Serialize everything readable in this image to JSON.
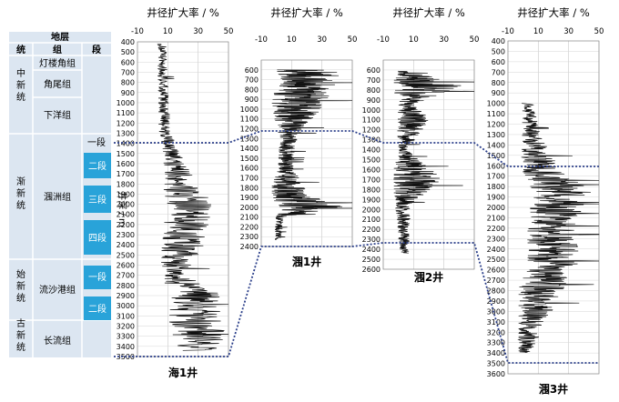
{
  "stratigraphy": {
    "header": "地层",
    "col_series": "统",
    "col_formation": "组",
    "col_member": "段",
    "series": [
      "中新统",
      "渐新统",
      "始新统",
      "古新统"
    ],
    "formations": [
      "灯楼角组",
      "角尾组",
      "下洋组",
      "涠洲组",
      "流沙港组",
      "长流组"
    ],
    "members": [
      "一段",
      "二段",
      "三段",
      "四段",
      "一段",
      "二段"
    ],
    "highlight_color": "#29a3d9",
    "panel_color": "#dce6f1"
  },
  "depth_axis_label": "井深 / m",
  "chart_data": [
    {
      "type": "line",
      "well": "海1井",
      "title": "井径扩大率 / %",
      "ylabel": "井深 / m",
      "xlim": [
        -10,
        50
      ],
      "x_ticks": [
        -10,
        10,
        30,
        50
      ],
      "ylim": [
        400,
        3500
      ],
      "y_ticks": [
        400,
        500,
        600,
        700,
        800,
        900,
        1000,
        1100,
        1200,
        1300,
        1400,
        1500,
        1600,
        1700,
        1800,
        1900,
        2000,
        2100,
        2200,
        2300,
        2400,
        2500,
        2600,
        2700,
        2800,
        2900,
        3000,
        3100,
        3200,
        3300,
        3400,
        3500
      ],
      "depth_top": 420,
      "depth_bottom": 3440,
      "profile": [
        {
          "d": 420,
          "base": 6,
          "amp": 3
        },
        {
          "d": 1300,
          "base": 8,
          "amp": 4
        },
        {
          "d": 1600,
          "base": 14,
          "amp": 8
        },
        {
          "d": 2000,
          "base": 24,
          "amp": 16
        },
        {
          "d": 2400,
          "base": 20,
          "amp": 14
        },
        {
          "d": 2700,
          "base": 14,
          "amp": 9
        },
        {
          "d": 2900,
          "base": 28,
          "amp": 18
        },
        {
          "d": 3440,
          "base": 30,
          "amp": 18
        }
      ]
    },
    {
      "type": "line",
      "well": "涠1井",
      "title": "井径扩大率 / %",
      "xlim": [
        -10,
        50
      ],
      "x_ticks": [
        -10,
        10,
        30,
        50
      ],
      "ylim": [
        500,
        2400
      ],
      "y_ticks": [
        600,
        700,
        800,
        900,
        1000,
        1100,
        1200,
        1300,
        1400,
        1500,
        1600,
        1700,
        1800,
        1900,
        2000,
        2100,
        2200,
        2300,
        2400
      ],
      "depth_top": 600,
      "depth_bottom": 2330,
      "profile": [
        {
          "d": 600,
          "base": 22,
          "amp": 22
        },
        {
          "d": 950,
          "base": 14,
          "amp": 18
        },
        {
          "d": 1300,
          "base": 8,
          "amp": 6
        },
        {
          "d": 1600,
          "base": 6,
          "amp": 5
        },
        {
          "d": 1880,
          "base": 8,
          "amp": 14
        },
        {
          "d": 2000,
          "base": 24,
          "amp": 22
        },
        {
          "d": 2100,
          "base": 2,
          "amp": 3
        },
        {
          "d": 2330,
          "base": 1,
          "amp": 2
        }
      ]
    },
    {
      "type": "line",
      "well": "涠2井",
      "title": "井径扩大率 / %",
      "xlim": [
        -10,
        50
      ],
      "x_ticks": [
        -10,
        10,
        30,
        50
      ],
      "ylim": [
        500,
        2600
      ],
      "y_ticks": [
        600,
        700,
        800,
        900,
        1000,
        1100,
        1200,
        1300,
        1400,
        1500,
        1600,
        1700,
        1800,
        1900,
        2000,
        2100,
        2200,
        2300,
        2400,
        2500,
        2600
      ],
      "depth_top": 610,
      "depth_bottom": 2440,
      "profile": [
        {
          "d": 610,
          "base": 3,
          "amp": 3
        },
        {
          "d": 750,
          "base": 20,
          "amp": 25
        },
        {
          "d": 950,
          "base": 5,
          "amp": 5
        },
        {
          "d": 1100,
          "base": 10,
          "amp": 12
        },
        {
          "d": 1400,
          "base": 3,
          "amp": 3
        },
        {
          "d": 1700,
          "base": 12,
          "amp": 18
        },
        {
          "d": 1950,
          "base": 3,
          "amp": 5
        },
        {
          "d": 2440,
          "base": 4,
          "amp": 3
        }
      ]
    },
    {
      "type": "line",
      "well": "涠3井",
      "title": "井径扩大率 / %",
      "xlim": [
        -10,
        50
      ],
      "x_ticks": [
        -10,
        10,
        30,
        50
      ],
      "ylim": [
        400,
        3600
      ],
      "y_ticks": [
        400,
        500,
        600,
        700,
        800,
        900,
        1000,
        1100,
        1200,
        1300,
        1400,
        1500,
        1600,
        1700,
        1800,
        1900,
        2000,
        2100,
        2200,
        2300,
        2400,
        2500,
        2600,
        2700,
        2800,
        2900,
        3000,
        3100,
        3200,
        3300,
        3400,
        3500,
        3600
      ],
      "depth_top": 1000,
      "depth_bottom": 3400,
      "profile": [
        {
          "d": 1000,
          "base": 3,
          "amp": 4
        },
        {
          "d": 1300,
          "base": 5,
          "amp": 6
        },
        {
          "d": 1650,
          "base": 12,
          "amp": 14
        },
        {
          "d": 1850,
          "base": 26,
          "amp": 20
        },
        {
          "d": 2200,
          "base": 18,
          "amp": 16
        },
        {
          "d": 2500,
          "base": 20,
          "amp": 18
        },
        {
          "d": 2850,
          "base": 10,
          "amp": 14
        },
        {
          "d": 3400,
          "base": 0,
          "amp": 5
        }
      ]
    }
  ]
}
